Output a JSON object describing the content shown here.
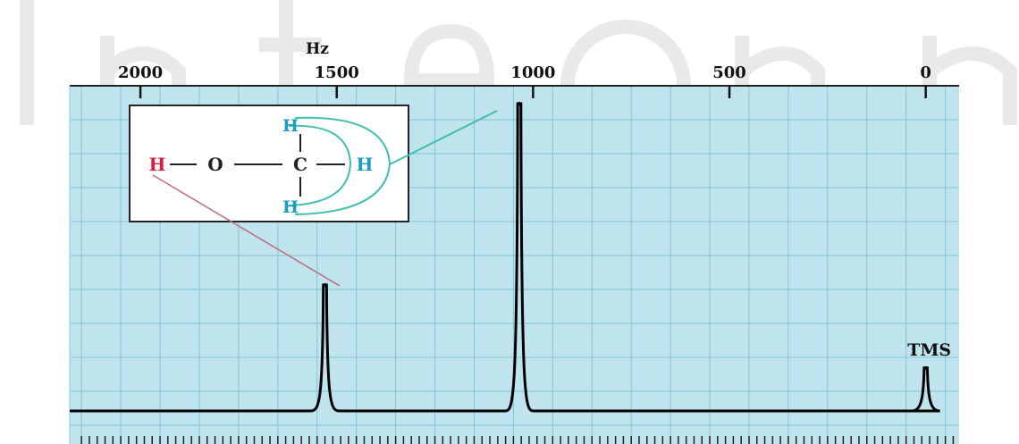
{
  "chart_data": {
    "type": "line",
    "title": "",
    "xlabel": "Hz",
    "ylabel": "",
    "xlim": [
      2180,
      -85
    ],
    "ylim": [
      0,
      100
    ],
    "x_ticks": [
      2000,
      1500,
      1000,
      500,
      0
    ],
    "x_tick_labels": [
      "2000",
      "1500",
      "1000",
      "500",
      "0"
    ],
    "grid": true,
    "series": [
      {
        "peaks": [
          {
            "x": 1530,
            "height": 41
          },
          {
            "x": 1035,
            "height": 100
          },
          {
            "x": 0,
            "height": 14
          }
        ]
      }
    ],
    "annotations": [
      {
        "text": "TMS",
        "x": 0
      }
    ],
    "molecule": {
      "atoms": {
        "h_hydroxyl": "H",
        "oxygen": "O",
        "carbon": "C",
        "h_top": "H",
        "h_right": "H",
        "h_bottom": "H"
      }
    },
    "colors": {
      "background": "#bfe4ee",
      "grid": "#7fc6d3",
      "hydroxyl_h": "#d81f3c",
      "methyl_h": "#1a9bc0",
      "methyl_link": "#3fbfae",
      "hydroxyl_link": "#c06a7a"
    }
  }
}
